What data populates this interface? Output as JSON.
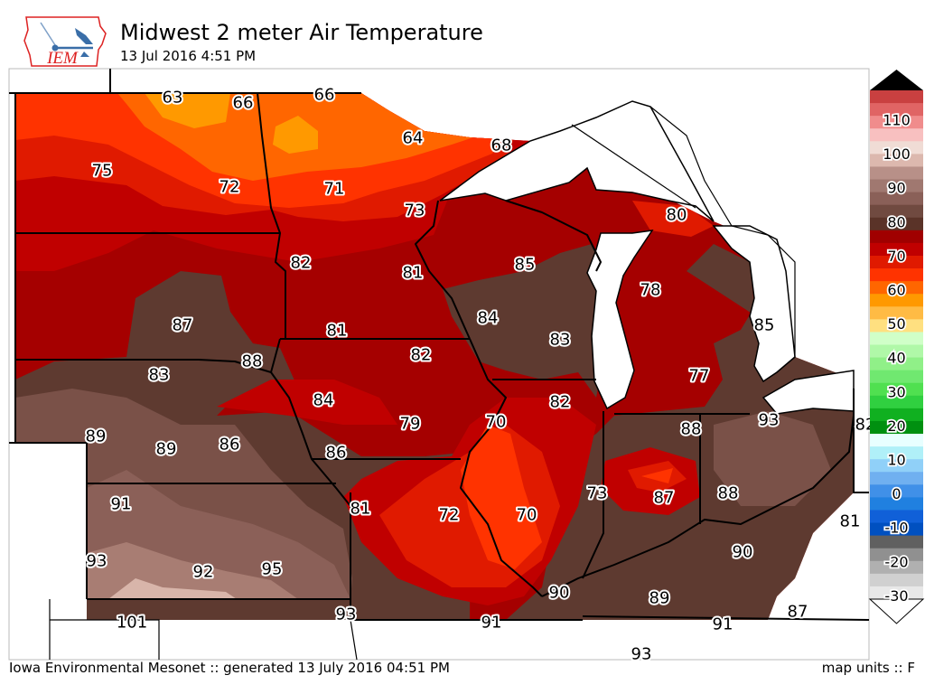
{
  "header": {
    "title": "Midwest 2 meter Air Temperature",
    "subtitle": "13 Jul 2016 4:51 PM"
  },
  "logo": {
    "text": "IEM",
    "color": "#dd2222"
  },
  "stations": [
    "63",
    "66",
    "66",
    "64",
    "68",
    "75",
    "72",
    "71",
    "73",
    "80",
    "82",
    "81",
    "85",
    "78",
    "87",
    "81",
    "84",
    "83",
    "85",
    "88",
    "82",
    "83",
    "77",
    "84",
    "82",
    "93",
    "82",
    "89",
    "89",
    "86",
    "79",
    "70",
    "88",
    "86",
    "73",
    "87",
    "88",
    "91",
    "81",
    "72",
    "70",
    "81",
    "90",
    "93",
    "92",
    "95",
    "90",
    "89",
    "101",
    "93",
    "91",
    "91",
    "87",
    "93"
  ],
  "colorbar": {
    "units": "F",
    "labels": [
      "110",
      "100",
      "90",
      "80",
      "70",
      "60",
      "50",
      "40",
      "30",
      "20",
      "10",
      "0",
      "-10",
      "-20",
      "-30"
    ],
    "colors": [
      "#c94040",
      "#e06464",
      "#f08c8c",
      "#f8c0c0",
      "#f0dcd5",
      "#dcb8ae",
      "#b89088",
      "#a07870",
      "#8a6058",
      "#704a40",
      "#5a3328",
      "#a00000",
      "#c00000",
      "#e01a00",
      "#ff3300",
      "#ff6600",
      "#ff9900",
      "#ffbb44",
      "#ffe080",
      "#d0ffc8",
      "#b0f8a8",
      "#90f088",
      "#70e870",
      "#50e050",
      "#30d040",
      "#10b020",
      "#009010",
      "#e8ffff",
      "#b0f0f8",
      "#90d0f8",
      "#70b0f0",
      "#4090e8",
      "#2080e0",
      "#1060d8",
      "#0050c0",
      "#606060",
      "#909090",
      "#b0b0b0",
      "#d0d0d0",
      "#e8e8e8"
    ]
  },
  "footer": {
    "left": "Iowa Environmental Mesonet :: generated 13 July 2016 04:51 PM",
    "right": "map units :: F"
  }
}
